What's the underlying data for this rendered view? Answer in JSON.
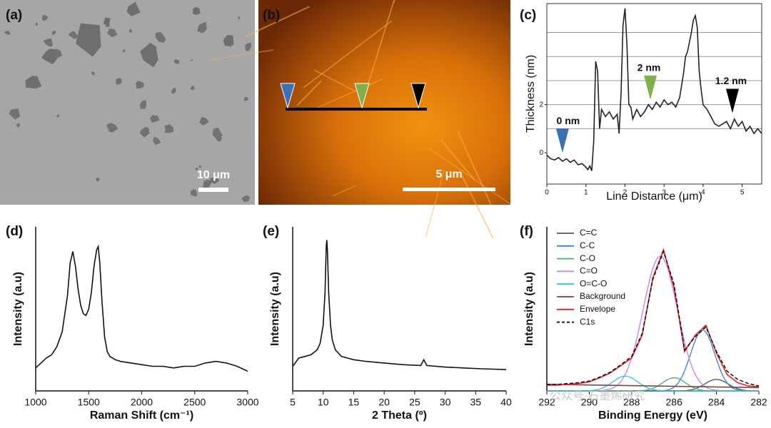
{
  "chart_data": [
    {
      "type": "image",
      "panel": "(a)",
      "scale_bar": "10 μm"
    },
    {
      "type": "image",
      "panel": "(b)",
      "scale_bar": "5 μm"
    },
    {
      "type": "line",
      "panel": "(c)",
      "x_label": "Line Distance (μm)",
      "y_label": "Thickness (nm)",
      "xlim": [
        0,
        5.5
      ],
      "ylim": [
        -1.3,
        6.2
      ],
      "xticks": [
        0,
        1,
        2,
        3,
        4,
        5
      ],
      "yticks": [
        0,
        2
      ],
      "grid_lines": [
        1,
        2,
        3,
        4,
        5
      ],
      "series": [
        {
          "color": "#222222",
          "x": [
            0,
            0.1,
            0.2,
            0.3,
            0.4,
            0.5,
            0.6,
            0.7,
            0.8,
            0.9,
            1.0,
            1.05,
            1.1,
            1.15,
            1.2,
            1.25,
            1.3,
            1.35,
            1.4,
            1.5,
            1.6,
            1.7,
            1.8,
            1.85,
            1.9,
            1.95,
            2.0,
            2.05,
            2.1,
            2.15,
            2.2,
            2.3,
            2.4,
            2.5,
            2.6,
            2.7,
            2.8,
            2.9,
            3.0,
            3.1,
            3.2,
            3.3,
            3.4,
            3.5,
            3.55,
            3.6,
            3.7,
            3.75,
            3.8,
            3.85,
            3.9,
            3.95,
            4.0,
            4.1,
            4.2,
            4.3,
            4.4,
            4.5,
            4.6,
            4.7,
            4.8,
            4.9,
            5.0,
            5.1,
            5.2,
            5.3,
            5.4,
            5.5
          ],
          "values": [
            -0.1,
            -0.25,
            -0.3,
            -0.2,
            -0.35,
            -0.25,
            -0.4,
            -0.3,
            -0.5,
            -0.45,
            -0.6,
            -0.7,
            -0.55,
            -0.75,
            0.5,
            3.8,
            3.4,
            1.0,
            1.8,
            1.5,
            1.7,
            1.4,
            1.6,
            0.8,
            2.5,
            5.3,
            6.0,
            4.5,
            2.0,
            1.9,
            1.4,
            1.8,
            1.5,
            1.7,
            2.0,
            1.8,
            2.1,
            1.9,
            2.2,
            2.0,
            2.1,
            1.9,
            2.3,
            3.3,
            4.0,
            4.2,
            5.0,
            5.5,
            5.7,
            5.2,
            3.4,
            2.6,
            2.0,
            1.8,
            1.5,
            1.2,
            1.1,
            1.2,
            1.3,
            1.0,
            1.4,
            1.1,
            1.3,
            0.9,
            1.1,
            0.8,
            1.0,
            0.8
          ]
        }
      ],
      "markers": [
        {
          "x": 0.4,
          "y": 0.0,
          "label": "0 nm",
          "color": "#3b6fb6"
        },
        {
          "x": 2.65,
          "y": 2.2,
          "label": "2 nm",
          "color": "#7fb04a"
        },
        {
          "x": 4.75,
          "y": 1.65,
          "label": "1.2 nm",
          "color": "#000000"
        }
      ]
    },
    {
      "type": "line",
      "panel": "(d)",
      "x_label": "Raman Shift (cm⁻¹)",
      "y_label": "Intensity (a.u)",
      "xlim": [
        1000,
        3000
      ],
      "ylim": [
        0,
        1
      ],
      "xticks": [
        1000,
        1500,
        2000,
        2500,
        3000
      ],
      "series": [
        {
          "color": "#111111",
          "x": [
            1000,
            1050,
            1100,
            1150,
            1200,
            1250,
            1300,
            1325,
            1350,
            1375,
            1400,
            1425,
            1450,
            1475,
            1500,
            1525,
            1550,
            1575,
            1590,
            1605,
            1625,
            1650,
            1675,
            1700,
            1750,
            1800,
            1900,
            2000,
            2100,
            2200,
            2300,
            2400,
            2500,
            2600,
            2700,
            2800,
            2900,
            3000
          ],
          "values": [
            0.14,
            0.17,
            0.2,
            0.22,
            0.27,
            0.36,
            0.58,
            0.78,
            0.85,
            0.76,
            0.62,
            0.52,
            0.47,
            0.46,
            0.5,
            0.6,
            0.76,
            0.86,
            0.88,
            0.78,
            0.55,
            0.33,
            0.24,
            0.21,
            0.19,
            0.18,
            0.17,
            0.16,
            0.15,
            0.15,
            0.14,
            0.15,
            0.15,
            0.17,
            0.18,
            0.17,
            0.15,
            0.12
          ]
        }
      ]
    },
    {
      "type": "line",
      "panel": "(e)",
      "x_label": "2 Theta (º)",
      "y_label": "Intensity (a.u)",
      "xlim": [
        5,
        40
      ],
      "ylim": [
        0,
        1
      ],
      "xticks": [
        5,
        10,
        15,
        20,
        25,
        30,
        35,
        40
      ],
      "series": [
        {
          "color": "#111111",
          "x": [
            5,
            6,
            7,
            8,
            9,
            9.5,
            10,
            10.3,
            10.5,
            10.6,
            10.7,
            10.9,
            11.2,
            11.5,
            12,
            13,
            14,
            15,
            17,
            20,
            23,
            26,
            26.5,
            27,
            30,
            33,
            36,
            40
          ],
          "values": [
            0.15,
            0.2,
            0.21,
            0.22,
            0.25,
            0.29,
            0.4,
            0.6,
            0.88,
            0.92,
            0.85,
            0.6,
            0.4,
            0.31,
            0.25,
            0.21,
            0.2,
            0.19,
            0.18,
            0.17,
            0.16,
            0.155,
            0.19,
            0.155,
            0.145,
            0.14,
            0.135,
            0.13
          ]
        }
      ]
    },
    {
      "type": "line",
      "panel": "(f)",
      "x_label": "Binding Energy (eV)",
      "y_label": "Intensity (a.u)",
      "xlim": [
        292,
        282
      ],
      "ylim": [
        0,
        1
      ],
      "xticks": [
        292,
        290,
        288,
        286,
        284,
        282
      ],
      "components": [
        {
          "name": "C=C",
          "color": "#555555",
          "center": 284.0,
          "height": 0.07,
          "fwhm": 1.3
        },
        {
          "name": "C-C",
          "color": "#3a7fd5",
          "center": 284.65,
          "height": 0.37,
          "fwhm": 1.35
        },
        {
          "name": "C-O",
          "color": "#3cb371",
          "center": 286.0,
          "height": 0.08,
          "fwhm": 1.3
        },
        {
          "name": "C=O",
          "color": "#c77ee8",
          "center": 286.65,
          "height": 0.82,
          "fwhm": 1.9
        },
        {
          "name": "O=C-O",
          "color": "#2ec4d6",
          "center": 288.3,
          "height": 0.09,
          "fwhm": 1.4
        }
      ],
      "background": {
        "name": "Background",
        "color": "#7a4b3a",
        "x": [
          292,
          282
        ],
        "values": [
          0.04,
          0.02
        ]
      },
      "x": [
        292,
        291.5,
        291,
        290.5,
        290,
        289.5,
        289,
        288.5,
        288,
        287.5,
        287,
        286.5,
        286,
        285.5,
        285,
        284.5,
        284,
        283.5,
        283,
        282.5,
        282
      ],
      "series": [
        {
          "name": "Envelope",
          "color": "#e8202a",
          "values": [
            0.035,
            0.035,
            0.04,
            0.045,
            0.055,
            0.08,
            0.11,
            0.155,
            0.2,
            0.34,
            0.69,
            0.86,
            0.63,
            0.24,
            0.34,
            0.4,
            0.23,
            0.1,
            0.05,
            0.03,
            0.026
          ]
        },
        {
          "name": "C1s",
          "color": "#000000",
          "dashed": true,
          "values": [
            0.04,
            0.04,
            0.045,
            0.05,
            0.06,
            0.085,
            0.115,
            0.16,
            0.21,
            0.35,
            0.68,
            0.85,
            0.65,
            0.25,
            0.33,
            0.39,
            0.24,
            0.12,
            0.07,
            0.045,
            0.03
          ]
        }
      ]
    }
  ],
  "watermark": "公众号·石墨烯研究"
}
